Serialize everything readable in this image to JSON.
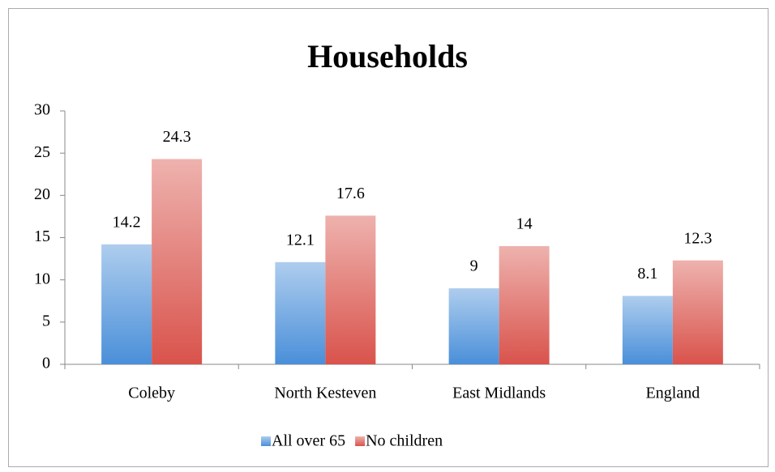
{
  "chart_data": {
    "type": "bar",
    "title": "Households",
    "categories": [
      "Coleby",
      "North Kesteven",
      "East Midlands",
      "England"
    ],
    "series": [
      {
        "name": "All over 65",
        "color": "#4a8fd9",
        "values": [
          14.2,
          12.1,
          9,
          8.1
        ]
      },
      {
        "name": "No children",
        "color": "#d9534c",
        "values": [
          24.3,
          17.6,
          14,
          12.3
        ]
      }
    ],
    "ylim": [
      0,
      30
    ],
    "yticks": [
      0,
      5,
      10,
      15,
      20,
      25,
      30
    ],
    "grid": false,
    "legend": "bottom"
  }
}
